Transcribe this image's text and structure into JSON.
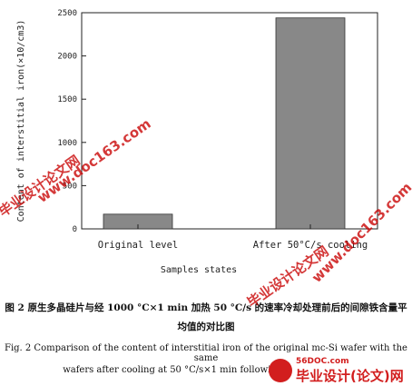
{
  "chart_data": {
    "type": "bar",
    "categories": [
      "Original level",
      "After 50°C/s cooling"
    ],
    "values": [
      170,
      2440
    ],
    "ylabel": "Content of interstitial iron(×10/cm3)",
    "xlabel": "Samples states",
    "ylim": [
      0,
      2500
    ],
    "yticks": [
      0,
      500,
      1000,
      1500,
      2000,
      2500
    ],
    "bar_color": "#888888",
    "grid": false
  },
  "caption": {
    "cn_line1": "图 2  原生多晶硅片与经 1000 °C×1 min 加热 50 °C/s 的速率冷却处理前后的间隙铁含量平",
    "cn_line2": "均值的对比图",
    "en_line1": "Fig. 2 Comparison of the content of interstitial iron of the original mc-Si wafer with the same",
    "en_line2": "wafers after cooling at 50 °C/s×1 min followin"
  },
  "watermarks": {
    "cn_text": "毕业设计论文网",
    "url_text": "www.doc163.com"
  },
  "logo": {
    "site": "56DOC.com",
    "text": "毕业设计(论文)网"
  }
}
